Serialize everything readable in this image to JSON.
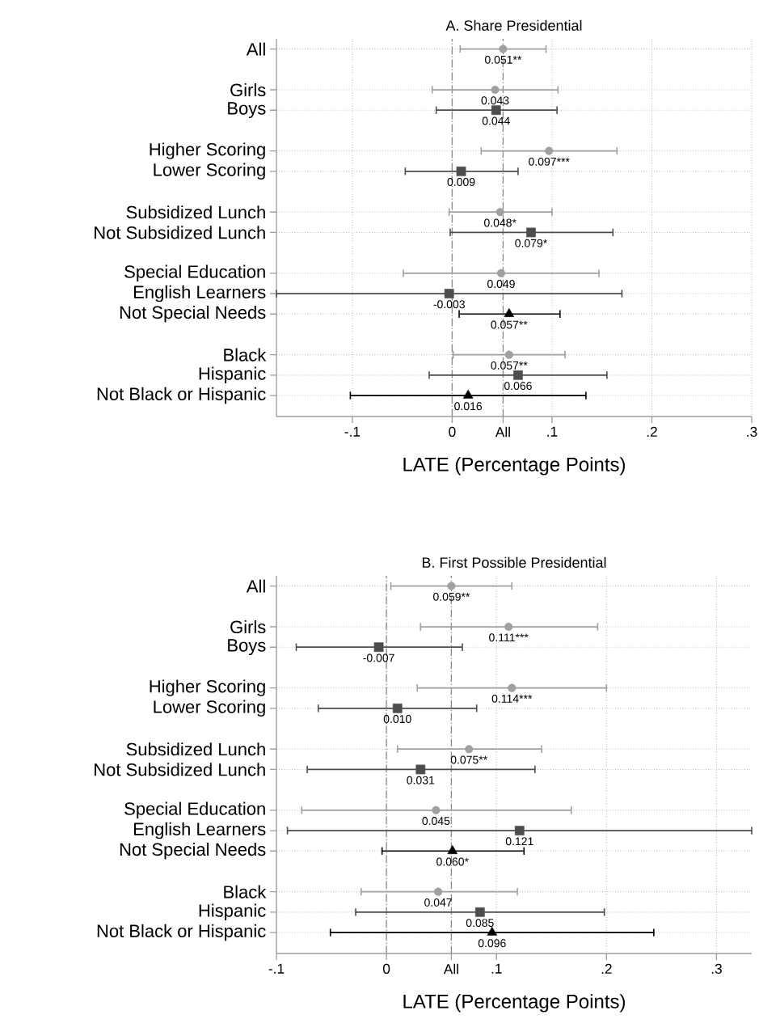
{
  "chart_data": [
    {
      "type": "scatter",
      "orientation": "horizontal",
      "title": "A. Share Presidential",
      "xlabel": "LATE (Percentage Points)",
      "categories": [
        "All",
        null,
        "Girls",
        "Boys",
        null,
        "Higher Scoring",
        "Lower Scoring",
        null,
        "Subsidized Lunch",
        "Not Subsidized Lunch",
        null,
        "Special Education",
        "English Learners",
        "Not Special Needs",
        null,
        "Black",
        "Hispanic",
        "Not Black or Hispanic"
      ],
      "xlim": [
        -0.176,
        0.3
      ],
      "xticks": [
        {
          "value": -0.1,
          "label": "-.1"
        },
        0,
        {
          "value": 0.1,
          "label": ".1"
        },
        {
          "value": 0.2,
          "label": ".2"
        },
        {
          "value": 0.3,
          "label": ".3"
        }
      ],
      "grid": true,
      "ref_lines": [
        {
          "axis": "x",
          "value": 0,
          "color": "#8c8c8c",
          "line_style": "dashdot"
        },
        {
          "axis": "x",
          "value": 0.051,
          "label": "All",
          "color": "#8c8c8c",
          "line_style": "dashdot"
        }
      ],
      "series": [
        {
          "color": "#a0a0a0",
          "marker": "circle",
          "values": [
            0.051,
            null,
            0.043,
            null,
            null,
            0.097,
            null,
            null,
            0.048,
            null,
            null,
            0.049,
            null,
            null,
            null,
            0.057,
            null,
            null
          ],
          "errors": [
            [
              0.008,
              0.094
            ],
            null,
            [
              -0.02,
              0.106
            ],
            null,
            null,
            [
              0.029,
              0.165
            ],
            null,
            null,
            [
              -0.003,
              0.1
            ],
            null,
            null,
            [
              -0.049,
              0.147
            ],
            null,
            null,
            null,
            [
              0.001,
              0.113
            ],
            null,
            null
          ],
          "value_labels": [
            "0.051**",
            null,
            "0.043",
            null,
            null,
            "0.097***",
            null,
            null,
            "0.048*",
            null,
            null,
            "0.049",
            null,
            null,
            null,
            "0.057**",
            null,
            null
          ]
        },
        {
          "color": "#4d4d4d",
          "marker": "square",
          "values": [
            null,
            null,
            null,
            0.044,
            null,
            null,
            0.009,
            null,
            null,
            0.079,
            null,
            null,
            -0.003,
            null,
            null,
            null,
            0.066,
            null
          ],
          "errors": [
            null,
            null,
            null,
            [
              -0.016,
              0.105
            ],
            null,
            null,
            [
              -0.047,
              0.066
            ],
            null,
            null,
            [
              -0.002,
              0.161
            ],
            null,
            null,
            [
              -0.176,
              0.17
            ],
            null,
            null,
            null,
            [
              -0.023,
              0.155
            ],
            null
          ],
          "value_labels": [
            null,
            null,
            null,
            "0.044",
            null,
            null,
            "0.009",
            null,
            null,
            "0.079*",
            null,
            null,
            "-0.003",
            null,
            null,
            null,
            "0.066",
            null
          ]
        },
        {
          "color": "#000000",
          "marker": "triangle",
          "values": [
            null,
            null,
            null,
            null,
            null,
            null,
            null,
            null,
            null,
            null,
            null,
            null,
            null,
            0.057,
            null,
            null,
            null,
            0.016
          ],
          "errors": [
            null,
            null,
            null,
            null,
            null,
            null,
            null,
            null,
            null,
            null,
            null,
            null,
            null,
            [
              0.007,
              0.108
            ],
            null,
            null,
            null,
            [
              -0.102,
              0.134
            ]
          ],
          "value_labels": [
            null,
            null,
            null,
            null,
            null,
            null,
            null,
            null,
            null,
            null,
            null,
            null,
            null,
            "0.057**",
            null,
            null,
            null,
            "0.016"
          ]
        }
      ]
    },
    {
      "type": "scatter",
      "orientation": "horizontal",
      "title": "B. First Possible Presidential",
      "xlabel": "LATE (Percentage Points)",
      "categories": [
        "All",
        null,
        "Girls",
        "Boys",
        null,
        "Higher Scoring",
        "Lower Scoring",
        null,
        "Subsidized Lunch",
        "Not Subsidized Lunch",
        null,
        "Special Education",
        "English Learners",
        "Not Special Needs",
        null,
        "Black",
        "Hispanic",
        "Not Black or Hispanic"
      ],
      "xlim": [
        -0.1,
        0.332
      ],
      "xticks": [
        {
          "value": -0.1,
          "label": "-.1"
        },
        0,
        {
          "value": 0.1,
          "label": ".1"
        },
        {
          "value": 0.2,
          "label": ".2"
        },
        {
          "value": 0.3,
          "label": ".3"
        }
      ],
      "grid": true,
      "ref_lines": [
        {
          "axis": "x",
          "value": 0,
          "color": "#8c8c8c",
          "line_style": "dashdot"
        },
        {
          "axis": "x",
          "value": 0.059,
          "label": "All",
          "color": "#8c8c8c",
          "line_style": "dashdot"
        }
      ],
      "series": [
        {
          "color": "#a0a0a0",
          "marker": "circle",
          "values": [
            0.059,
            null,
            0.111,
            null,
            null,
            0.114,
            null,
            null,
            0.075,
            null,
            null,
            0.045,
            null,
            null,
            null,
            0.047,
            null,
            null
          ],
          "errors": [
            [
              0.004,
              0.114
            ],
            null,
            [
              0.031,
              0.192
            ],
            null,
            null,
            [
              0.028,
              0.2
            ],
            null,
            null,
            [
              0.01,
              0.141
            ],
            null,
            null,
            [
              -0.077,
              0.168
            ],
            null,
            null,
            null,
            [
              -0.023,
              0.119
            ],
            null,
            null
          ],
          "value_labels": [
            "0.059**",
            null,
            "0.111***",
            null,
            null,
            "0.114***",
            null,
            null,
            "0.075**",
            null,
            null,
            "0.045",
            null,
            null,
            null,
            "0.047",
            null,
            null
          ]
        },
        {
          "color": "#4d4d4d",
          "marker": "square",
          "values": [
            null,
            null,
            null,
            -0.007,
            null,
            null,
            0.01,
            null,
            null,
            0.031,
            null,
            null,
            0.121,
            null,
            null,
            null,
            0.085,
            null
          ],
          "errors": [
            null,
            null,
            null,
            [
              -0.082,
              0.069
            ],
            null,
            null,
            [
              -0.062,
              0.082
            ],
            null,
            null,
            [
              -0.072,
              0.135
            ],
            null,
            null,
            [
              -0.09,
              0.332
            ],
            null,
            null,
            null,
            [
              -0.028,
              0.198
            ],
            null
          ],
          "value_labels": [
            null,
            null,
            null,
            "-0.007",
            null,
            null,
            "0.010",
            null,
            null,
            "0.031",
            null,
            null,
            "0.121",
            null,
            null,
            null,
            "0.085",
            null
          ]
        },
        {
          "color": "#000000",
          "marker": "triangle",
          "values": [
            null,
            null,
            null,
            null,
            null,
            null,
            null,
            null,
            null,
            null,
            null,
            null,
            null,
            0.06,
            null,
            null,
            null,
            0.096
          ],
          "errors": [
            null,
            null,
            null,
            null,
            null,
            null,
            null,
            null,
            null,
            null,
            null,
            null,
            null,
            [
              -0.004,
              0.125
            ],
            null,
            null,
            null,
            [
              -0.051,
              0.243
            ]
          ],
          "value_labels": [
            null,
            null,
            null,
            null,
            null,
            null,
            null,
            null,
            null,
            null,
            null,
            null,
            null,
            "0.060*",
            null,
            null,
            null,
            "0.096"
          ]
        }
      ]
    }
  ]
}
